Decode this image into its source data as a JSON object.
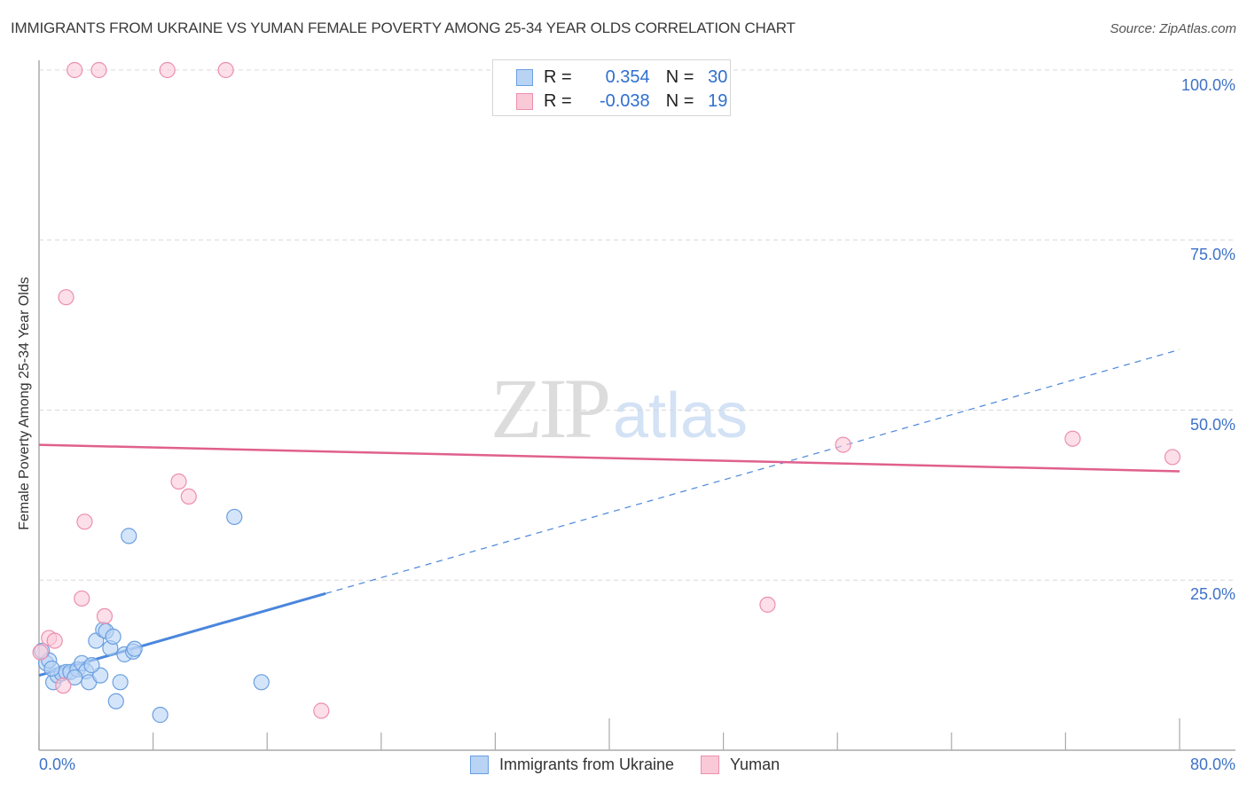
{
  "header": {
    "title": "IMMIGRANTS FROM UKRAINE VS YUMAN FEMALE POVERTY AMONG 25-34 YEAR OLDS CORRELATION CHART",
    "source": "Source: ZipAtlas.com"
  },
  "watermark": {
    "zip": "ZIP",
    "atlas": "atlas"
  },
  "legend_top": {
    "rows": [
      {
        "r_label": "R =",
        "r_value": "0.354",
        "n_label": "N =",
        "n_value": "30",
        "color": "#6a9fe0",
        "fill": "#b9d3f5"
      },
      {
        "r_label": "R =",
        "r_value": "-0.038",
        "n_label": "N =",
        "n_value": "19",
        "color": "#ec8fae",
        "fill": "#fac9d8"
      }
    ]
  },
  "legend_bottom": {
    "items": [
      {
        "label": "Immigrants from Ukraine",
        "color": "#6a9fe0",
        "fill": "#b9d3f5"
      },
      {
        "label": "Yuman",
        "color": "#ec8fae",
        "fill": "#fac9d8"
      }
    ]
  },
  "axes": {
    "ylabel": "Female Poverty Among 25-34 Year Olds",
    "yticks": [
      "100.0%",
      "75.0%",
      "50.0%",
      "25.0%"
    ],
    "xticks": [
      "0.0%",
      "80.0%"
    ]
  },
  "chart_data": {
    "type": "scatter",
    "title": "IMMIGRANTS FROM UKRAINE VS YUMAN FEMALE POVERTY AMONG 25-34 YEAR OLDS CORRELATION CHART",
    "xlabel": "",
    "ylabel": "Female Poverty Among 25-34 Year Olds",
    "xlim": [
      0,
      80
    ],
    "ylim": [
      0,
      100
    ],
    "grid": true,
    "legend_position": "bottom",
    "series": [
      {
        "name": "Immigrants from Ukraine",
        "color": "#4a86dc",
        "R": 0.354,
        "N": 30,
        "points": [
          [
            0.5,
            12.8
          ],
          [
            0.7,
            13.2
          ],
          [
            1.0,
            10.0
          ],
          [
            1.3,
            11.0
          ],
          [
            1.6,
            11.3
          ],
          [
            1.9,
            11.5
          ],
          [
            2.2,
            11.5
          ],
          [
            2.7,
            11.9
          ],
          [
            3.0,
            12.8
          ],
          [
            3.3,
            11.6
          ],
          [
            3.5,
            10.0
          ],
          [
            4.0,
            16.1
          ],
          [
            4.3,
            11.0
          ],
          [
            4.5,
            17.7
          ],
          [
            4.7,
            17.5
          ],
          [
            5.0,
            15.0
          ],
          [
            5.2,
            16.7
          ],
          [
            5.7,
            10.0
          ],
          [
            5.4,
            7.2
          ],
          [
            6.0,
            14.1
          ],
          [
            6.3,
            31.5
          ],
          [
            6.6,
            14.5
          ],
          [
            6.7,
            14.9
          ],
          [
            8.5,
            5.2
          ],
          [
            13.7,
            34.3
          ],
          [
            15.6,
            10.0
          ],
          [
            0.2,
            14.6
          ],
          [
            0.9,
            12.0
          ],
          [
            2.5,
            10.7
          ],
          [
            3.7,
            12.5
          ]
        ],
        "trendline": {
          "x": [
            0,
            80
          ],
          "y": [
            11.0,
            58.9
          ],
          "solid_until_x": 20.1
        }
      },
      {
        "name": "Yuman",
        "color": "#e0608d",
        "R": -0.038,
        "N": 19,
        "points": [
          [
            2.5,
            100.0
          ],
          [
            4.2,
            100.0
          ],
          [
            9.0,
            100.0
          ],
          [
            13.1,
            100.0
          ],
          [
            1.9,
            66.6
          ],
          [
            3.2,
            33.6
          ],
          [
            9.8,
            39.5
          ],
          [
            10.5,
            37.3
          ],
          [
            3.0,
            22.3
          ],
          [
            4.6,
            19.7
          ],
          [
            0.7,
            16.5
          ],
          [
            1.1,
            16.1
          ],
          [
            0.1,
            14.4
          ],
          [
            1.7,
            9.5
          ],
          [
            19.8,
            5.8
          ],
          [
            51.1,
            21.4
          ],
          [
            56.4,
            44.9
          ],
          [
            72.5,
            45.8
          ],
          [
            79.5,
            43.1
          ]
        ],
        "trendline": {
          "x": [
            0,
            80
          ],
          "y": [
            44.9,
            41.0
          ]
        }
      }
    ]
  }
}
